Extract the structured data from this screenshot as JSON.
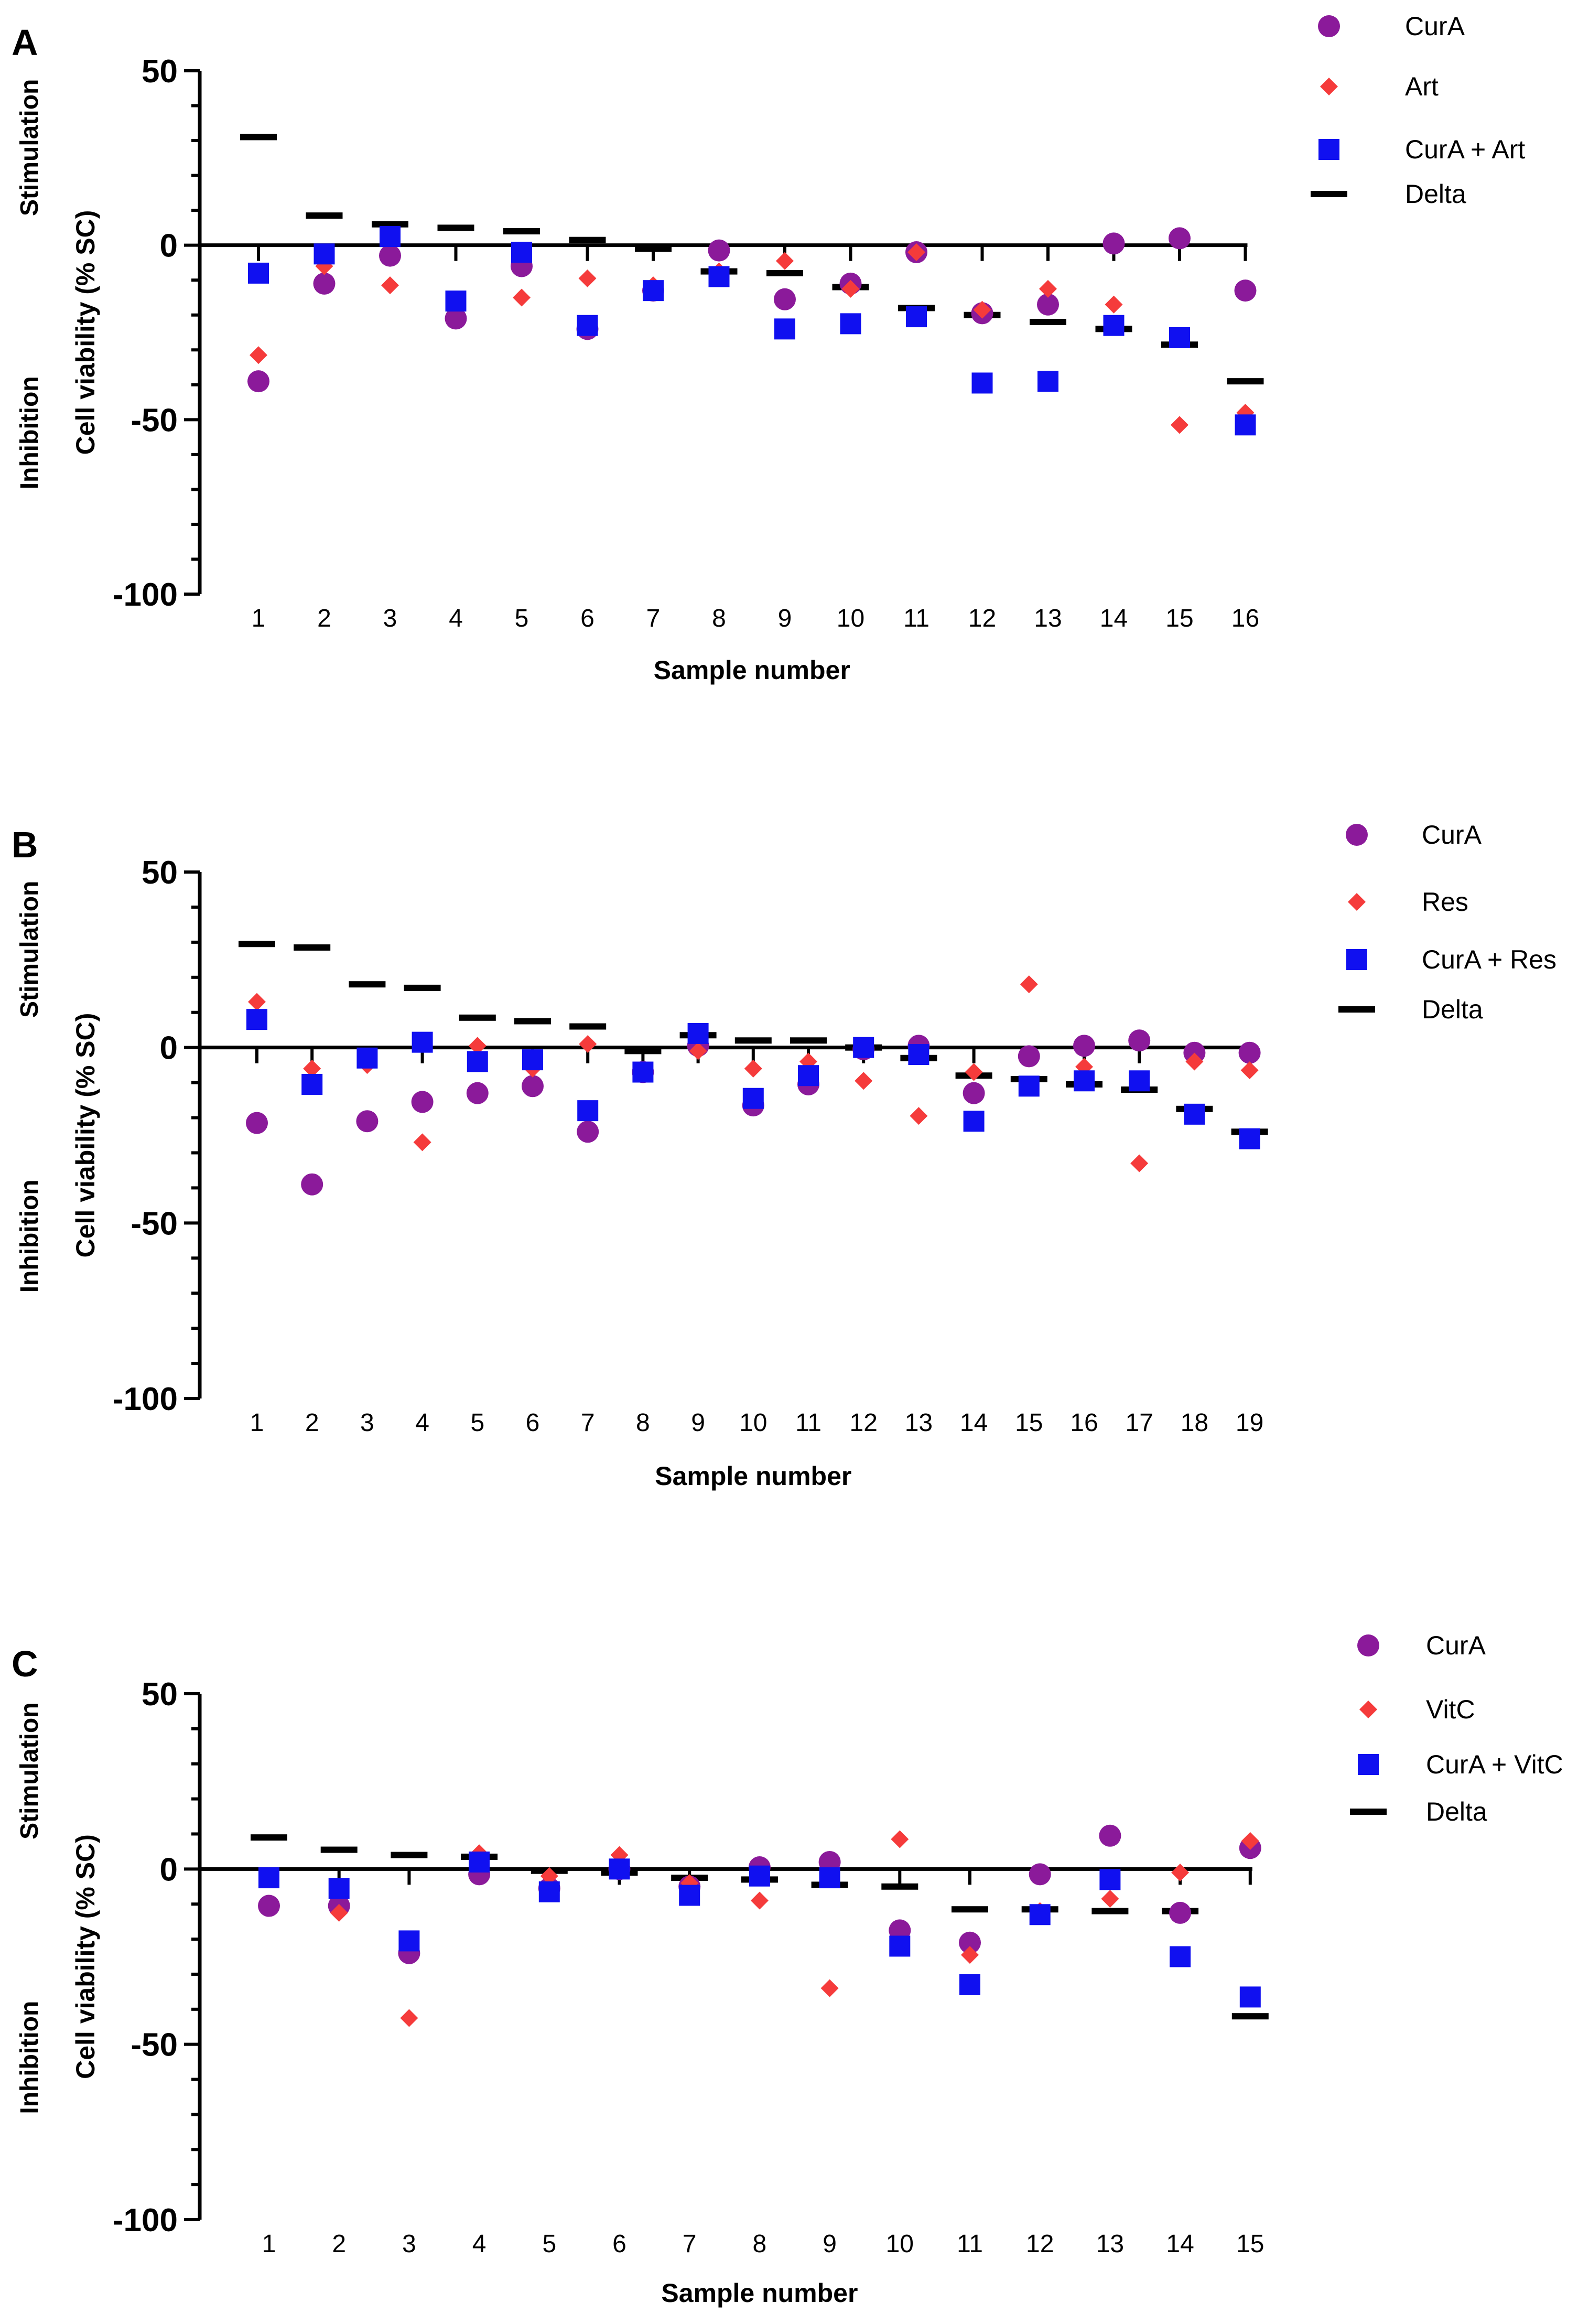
{
  "chart_data": [
    {
      "type": "scatter",
      "panel": "A",
      "ylabel": "Cell viability (% SC)",
      "xlabel": "Sample number",
      "side_labels": {
        "top": "Stimulation",
        "bottom": "Inhibition"
      },
      "ylim": [
        -100,
        50
      ],
      "yticks": [
        50,
        0,
        -50,
        -100
      ],
      "categories": [
        "1",
        "2",
        "3",
        "4",
        "5",
        "6",
        "7",
        "8",
        "9",
        "10",
        "11",
        "12",
        "13",
        "14",
        "15",
        "16"
      ],
      "series": [
        {
          "name": "CurA",
          "marker": "circle",
          "color": "#8B1A9A",
          "values": [
            -39,
            -11,
            -3,
            -21,
            -6,
            -24,
            -13,
            -1.5,
            -15.5,
            -11,
            -2,
            -19.5,
            -17,
            0.5,
            2,
            -13
          ]
        },
        {
          "name": "Art",
          "marker": "diamond",
          "color": "#F53B3B",
          "values": [
            -31.5,
            -6,
            -11.5,
            -16,
            -15,
            -9.5,
            -11.5,
            -7.5,
            -4.5,
            -12.5,
            -2,
            -18.5,
            -12.5,
            -17,
            -51.5,
            -48
          ]
        },
        {
          "name": "CurA + Art",
          "marker": "square",
          "color": "#1010F0",
          "values": [
            -8,
            -2.5,
            2.5,
            -16,
            -2,
            -23,
            -13,
            -9,
            -24,
            -22.5,
            -20.5,
            -39.5,
            -39,
            -23,
            -26.5,
            -51.5
          ]
        },
        {
          "name": "Delta",
          "marker": "dash",
          "color": "#000000",
          "values": [
            31,
            8.5,
            6,
            5,
            4,
            1.5,
            -1,
            -7.5,
            -8,
            -12,
            -18,
            -20,
            -22,
            -24,
            -28.5,
            -39
          ]
        }
      ]
    },
    {
      "type": "scatter",
      "panel": "B",
      "ylabel": "Cell viability (% SC)",
      "xlabel": "Sample number",
      "side_labels": {
        "top": "Stimulation",
        "bottom": "Inhibition"
      },
      "ylim": [
        -100,
        50
      ],
      "yticks": [
        50,
        0,
        -50,
        -100
      ],
      "categories": [
        "1",
        "2",
        "3",
        "4",
        "5",
        "6",
        "7",
        "8",
        "9",
        "10",
        "11",
        "12",
        "13",
        "14",
        "15",
        "16",
        "17",
        "18",
        "19"
      ],
      "series": [
        {
          "name": "CurA",
          "marker": "circle",
          "color": "#8B1A9A",
          "values": [
            -21.5,
            -39,
            -21,
            -15.5,
            -13,
            -11,
            -24,
            -7,
            0.5,
            -16.5,
            -10.5,
            -0.5,
            0.5,
            -13,
            -2.5,
            0.5,
            2,
            -1.5,
            -1.5
          ]
        },
        {
          "name": "Res",
          "marker": "diamond",
          "color": "#F53B3B",
          "values": [
            13,
            -6,
            -5,
            -27,
            0.5,
            -6,
            1,
            -7,
            -1,
            -6,
            -4,
            -9.5,
            -19.5,
            -7,
            18,
            -5.5,
            -33,
            -4,
            -6.5
          ]
        },
        {
          "name": "CurA + Res",
          "marker": "square",
          "color": "#1010F0",
          "values": [
            8,
            -10.5,
            -3,
            1.5,
            -4,
            -3.5,
            -18,
            -7,
            4,
            -14.5,
            -8,
            0,
            -2,
            -21,
            -11,
            -9.5,
            -9.5,
            -19,
            -26
          ]
        },
        {
          "name": "Delta",
          "marker": "dash",
          "color": "#000000",
          "values": [
            29.5,
            28.5,
            18,
            17,
            8.5,
            7.5,
            6,
            -1,
            3.5,
            2,
            2,
            0,
            -3,
            -8,
            -9,
            -10.5,
            -12,
            -17.5,
            -24
          ]
        }
      ]
    },
    {
      "type": "scatter",
      "panel": "C",
      "ylabel": "Cell viability (% SC)",
      "xlabel": "Sample number",
      "side_labels": {
        "top": "Stimulation",
        "bottom": "Inhibition"
      },
      "ylim": [
        -100,
        50
      ],
      "yticks": [
        50,
        0,
        -50,
        -100
      ],
      "categories": [
        "1",
        "2",
        "3",
        "4",
        "5",
        "6",
        "7",
        "8",
        "9",
        "10",
        "11",
        "12",
        "13",
        "14",
        "15"
      ],
      "series": [
        {
          "name": "CurA",
          "marker": "circle",
          "color": "#8B1A9A",
          "values": [
            -10.5,
            -10.5,
            -24,
            -1.5,
            -5.5,
            0,
            -5,
            0.5,
            2,
            -17.5,
            -21,
            -1.5,
            9.5,
            -12.5,
            6
          ]
        },
        {
          "name": "VitC",
          "marker": "diamond",
          "color": "#F53B3B",
          "values": [
            -2,
            -12.5,
            -42.5,
            4.5,
            -2,
            4,
            -4,
            -9,
            -34,
            8.5,
            -24.5,
            -12,
            -8.5,
            -1,
            8
          ]
        },
        {
          "name": "CurA + VitC",
          "marker": "square",
          "color": "#1010F0",
          "values": [
            -2.5,
            -5.5,
            -20.5,
            2,
            -6.5,
            0,
            -7.5,
            -2,
            -2.5,
            -22,
            -33,
            -13,
            -3,
            -25,
            -36.5
          ]
        },
        {
          "name": "Delta",
          "marker": "dash",
          "color": "#000000",
          "values": [
            9,
            5.5,
            4,
            3.5,
            -0.5,
            -1,
            -2.5,
            -3,
            -4.5,
            -5,
            -11.5,
            -11.5,
            -12,
            -12,
            -42
          ]
        }
      ]
    }
  ]
}
